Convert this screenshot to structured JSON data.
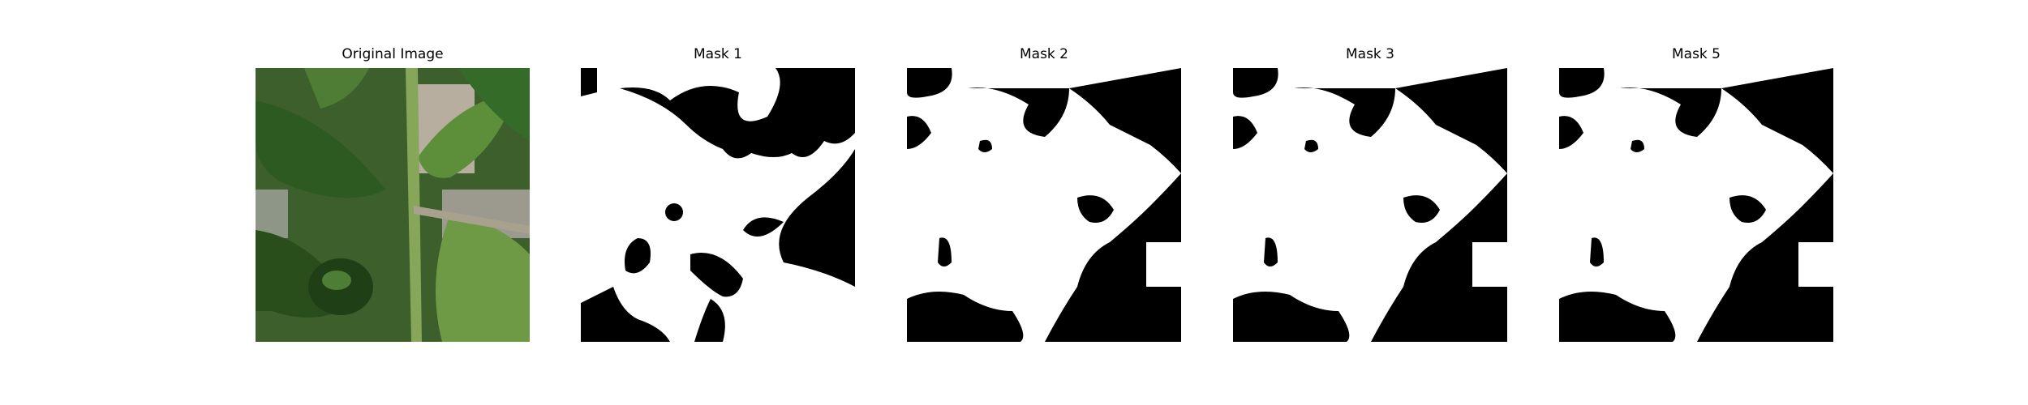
{
  "panels": [
    {
      "title": "Original Image",
      "kind": "photo",
      "subject": "pepper plant leaves and stem"
    },
    {
      "title": "Mask 1",
      "kind": "binary-mask"
    },
    {
      "title": "Mask 2",
      "kind": "binary-mask"
    },
    {
      "title": "Mask 3",
      "kind": "binary-mask"
    },
    {
      "title": "Mask 5",
      "kind": "binary-mask"
    }
  ],
  "colors": {
    "mask_foreground": "#ffffff",
    "mask_background": "#000000",
    "leaf_dark": "#2f5a22",
    "leaf_light": "#6f9a45"
  }
}
